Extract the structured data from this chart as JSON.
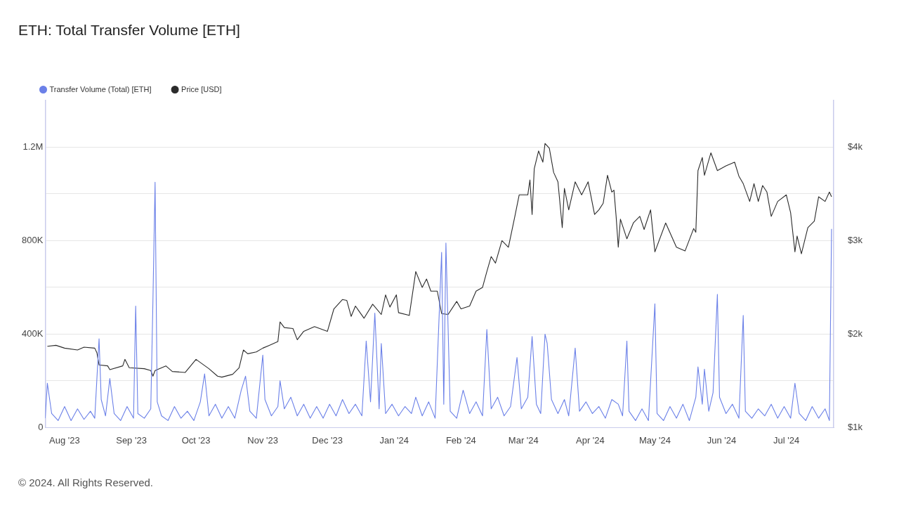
{
  "chart_data": {
    "type": "line",
    "title": "ETH: Total Transfer Volume [ETH]",
    "annotations": [
      "© 2024. All Rights Reserved."
    ],
    "legend": "top left",
    "grid": "y",
    "marker": "none",
    "line_style": "solid",
    "xlim": [
      "2023-07-23",
      "2024-07-23"
    ],
    "xticks": [
      {
        "value": "2023-08-01",
        "label": "Aug '23"
      },
      {
        "value": "2023-09-01",
        "label": "Sep '23"
      },
      {
        "value": "2023-10-01",
        "label": "Oct '23"
      },
      {
        "value": "2023-11-01",
        "label": "Nov '23"
      },
      {
        "value": "2023-12-01",
        "label": "Dec '23"
      },
      {
        "value": "2024-01-01",
        "label": "Jan '24"
      },
      {
        "value": "2024-02-01",
        "label": "Feb '24"
      },
      {
        "value": "2024-03-01",
        "label": "Mar '24"
      },
      {
        "value": "2024-04-01",
        "label": "Apr '24"
      },
      {
        "value": "2024-05-01",
        "label": "May '24"
      },
      {
        "value": "2024-06-01",
        "label": "Jun '24"
      },
      {
        "value": "2024-07-01",
        "label": "Jul '24"
      }
    ],
    "ylim": [
      0,
      1400000
    ],
    "yticks": [
      0,
      {
        "value": 200000,
        "label": null
      },
      {
        "value": 400000,
        "label": "400K"
      },
      {
        "value": 600000,
        "label": null
      },
      {
        "value": 800000,
        "label": "800K"
      },
      {
        "value": 1000000,
        "label": null
      },
      {
        "value": 1200000,
        "label": "1.2M"
      }
    ],
    "y2lim": [
      1000,
      4500
    ],
    "y2ticks": [
      {
        "value": 1000,
        "label": "$1k"
      },
      {
        "value": 2000,
        "label": "$2k"
      },
      {
        "value": 3000,
        "label": "$3k"
      },
      {
        "value": 4000,
        "label": "$4k"
      }
    ],
    "series": [
      {
        "name": "Transfer Volume (Total) [ETH]",
        "color": "#6b80e8",
        "axis": "y",
        "x": [
          "2023-07-23",
          "2023-07-24",
          "2023-07-26",
          "2023-07-29",
          "2023-08-01",
          "2023-08-04",
          "2023-08-07",
          "2023-08-10",
          "2023-08-13",
          "2023-08-15",
          "2023-08-17",
          "2023-08-18",
          "2023-08-20",
          "2023-08-22",
          "2023-08-24",
          "2023-08-27",
          "2023-08-30",
          "2023-09-02",
          "2023-09-03",
          "2023-09-04",
          "2023-09-07",
          "2023-09-10",
          "2023-09-11",
          "2023-09-12",
          "2023-09-13",
          "2023-09-15",
          "2023-09-18",
          "2023-09-21",
          "2023-09-24",
          "2023-09-27",
          "2023-09-30",
          "2023-10-03",
          "2023-10-05",
          "2023-10-07",
          "2023-10-10",
          "2023-10-13",
          "2023-10-16",
          "2023-10-19",
          "2023-10-22",
          "2023-10-24",
          "2023-10-26",
          "2023-10-29",
          "2023-11-01",
          "2023-11-02",
          "2023-11-05",
          "2023-11-08",
          "2023-11-09",
          "2023-11-11",
          "2023-11-14",
          "2023-11-17",
          "2023-11-20",
          "2023-11-23",
          "2023-11-26",
          "2023-11-29",
          "2023-12-02",
          "2023-12-05",
          "2023-12-08",
          "2023-12-11",
          "2023-12-14",
          "2023-12-17",
          "2023-12-19",
          "2023-12-21",
          "2023-12-23",
          "2023-12-25",
          "2023-12-26",
          "2023-12-28",
          "2023-12-31",
          "2024-01-03",
          "2024-01-06",
          "2024-01-09",
          "2024-01-11",
          "2024-01-14",
          "2024-01-17",
          "2024-01-20",
          "2024-01-23",
          "2024-01-24",
          "2024-01-25",
          "2024-01-27",
          "2024-01-30",
          "2024-02-02",
          "2024-02-05",
          "2024-02-08",
          "2024-02-11",
          "2024-02-13",
          "2024-02-15",
          "2024-02-18",
          "2024-02-21",
          "2024-02-24",
          "2024-02-27",
          "2024-02-29",
          "2024-03-03",
          "2024-03-05",
          "2024-03-07",
          "2024-03-09",
          "2024-03-11",
          "2024-03-12",
          "2024-03-14",
          "2024-03-17",
          "2024-03-20",
          "2024-03-22",
          "2024-03-25",
          "2024-03-27",
          "2024-03-30",
          "2024-04-02",
          "2024-04-05",
          "2024-04-08",
          "2024-04-11",
          "2024-04-14",
          "2024-04-16",
          "2024-04-18",
          "2024-04-19",
          "2024-04-22",
          "2024-04-25",
          "2024-04-28",
          "2024-05-01",
          "2024-05-02",
          "2024-05-05",
          "2024-05-08",
          "2024-05-11",
          "2024-05-14",
          "2024-05-17",
          "2024-05-20",
          "2024-05-21",
          "2024-05-23",
          "2024-05-24",
          "2024-05-26",
          "2024-05-28",
          "2024-05-30",
          "2024-05-31",
          "2024-06-03",
          "2024-06-06",
          "2024-06-09",
          "2024-06-11",
          "2024-06-12",
          "2024-06-15",
          "2024-06-18",
          "2024-06-21",
          "2024-06-24",
          "2024-06-27",
          "2024-06-30",
          "2024-07-03",
          "2024-07-05",
          "2024-07-07",
          "2024-07-10",
          "2024-07-13",
          "2024-07-16",
          "2024-07-19",
          "2024-07-21",
          "2024-07-22"
        ],
        "values": [
          40000,
          190000,
          60000,
          30000,
          90000,
          30000,
          80000,
          35000,
          70000,
          40000,
          380000,
          120000,
          50000,
          210000,
          60000,
          30000,
          90000,
          40000,
          520000,
          60000,
          40000,
          80000,
          540000,
          1050000,
          110000,
          50000,
          30000,
          90000,
          40000,
          70000,
          30000,
          110000,
          230000,
          50000,
          100000,
          40000,
          90000,
          40000,
          160000,
          220000,
          70000,
          40000,
          310000,
          120000,
          50000,
          90000,
          200000,
          80000,
          130000,
          50000,
          100000,
          40000,
          90000,
          40000,
          100000,
          50000,
          120000,
          60000,
          100000,
          50000,
          370000,
          110000,
          490000,
          80000,
          360000,
          60000,
          100000,
          50000,
          90000,
          60000,
          130000,
          50000,
          110000,
          40000,
          750000,
          100000,
          790000,
          70000,
          40000,
          160000,
          60000,
          110000,
          50000,
          420000,
          80000,
          130000,
          50000,
          90000,
          300000,
          80000,
          130000,
          390000,
          100000,
          60000,
          400000,
          360000,
          120000,
          60000,
          120000,
          50000,
          340000,
          70000,
          110000,
          60000,
          90000,
          40000,
          120000,
          100000,
          50000,
          370000,
          70000,
          30000,
          80000,
          30000,
          530000,
          60000,
          30000,
          90000,
          40000,
          100000,
          30000,
          130000,
          260000,
          100000,
          250000,
          70000,
          150000,
          570000,
          130000,
          60000,
          100000,
          40000,
          480000,
          70000,
          40000,
          80000,
          50000,
          100000,
          40000,
          90000,
          40000,
          190000,
          60000,
          30000,
          90000,
          40000,
          80000,
          30000,
          850000
        ]
      },
      {
        "name": "Price [USD]",
        "color": "#2b2b2b",
        "axis": "y2",
        "x": [
          "2023-07-24",
          "2023-07-28",
          "2023-08-01",
          "2023-08-07",
          "2023-08-10",
          "2023-08-15",
          "2023-08-16",
          "2023-08-17",
          "2023-08-21",
          "2023-08-22",
          "2023-08-28",
          "2023-08-29",
          "2023-08-31",
          "2023-09-07",
          "2023-09-10",
          "2023-09-11",
          "2023-09-12",
          "2023-09-17",
          "2023-09-20",
          "2023-09-26",
          "2023-10-01",
          "2023-10-07",
          "2023-10-11",
          "2023-10-13",
          "2023-10-18",
          "2023-10-21",
          "2023-10-23",
          "2023-10-25",
          "2023-10-29",
          "2023-11-01",
          "2023-11-04",
          "2023-11-08",
          "2023-11-09",
          "2023-11-11",
          "2023-11-15",
          "2023-11-17",
          "2023-11-20",
          "2023-11-25",
          "2023-12-01",
          "2023-12-04",
          "2023-12-08",
          "2023-12-10",
          "2023-12-12",
          "2023-12-14",
          "2023-12-18",
          "2023-12-22",
          "2023-12-26",
          "2023-12-28",
          "2023-12-30",
          "2024-01-02",
          "2024-01-03",
          "2024-01-08",
          "2024-01-11",
          "2024-01-14",
          "2024-01-16",
          "2024-01-18",
          "2024-01-21",
          "2024-01-23",
          "2024-01-26",
          "2024-01-30",
          "2024-02-01",
          "2024-02-05",
          "2024-02-08",
          "2024-02-11",
          "2024-02-13",
          "2024-02-15",
          "2024-02-17",
          "2024-02-20",
          "2024-02-23",
          "2024-02-26",
          "2024-02-28",
          "2024-03-03",
          "2024-03-04",
          "2024-03-05",
          "2024-03-06",
          "2024-03-08",
          "2024-03-10",
          "2024-03-11",
          "2024-03-13",
          "2024-03-15",
          "2024-03-17",
          "2024-03-19",
          "2024-03-20",
          "2024-03-22",
          "2024-03-25",
          "2024-03-28",
          "2024-03-31",
          "2024-04-03",
          "2024-04-05",
          "2024-04-07",
          "2024-04-09",
          "2024-04-11",
          "2024-04-12",
          "2024-04-13",
          "2024-04-14",
          "2024-04-15",
          "2024-04-18",
          "2024-04-21",
          "2024-04-24",
          "2024-04-26",
          "2024-04-29",
          "2024-05-01",
          "2024-05-06",
          "2024-05-11",
          "2024-05-15",
          "2024-05-19",
          "2024-05-20",
          "2024-05-21",
          "2024-05-23",
          "2024-05-24",
          "2024-05-27",
          "2024-05-30",
          "2024-06-03",
          "2024-06-07",
          "2024-06-09",
          "2024-06-11",
          "2024-06-14",
          "2024-06-16",
          "2024-06-18",
          "2024-06-20",
          "2024-06-22",
          "2024-06-24",
          "2024-06-27",
          "2024-07-01",
          "2024-07-03",
          "2024-07-05",
          "2024-07-06",
          "2024-07-08",
          "2024-07-11",
          "2024-07-14",
          "2024-07-16",
          "2024-07-19",
          "2024-07-21",
          "2024-07-22"
        ],
        "values": [
          1870,
          1880,
          1850,
          1830,
          1860,
          1850,
          1800,
          1670,
          1660,
          1620,
          1660,
          1730,
          1640,
          1630,
          1610,
          1550,
          1610,
          1660,
          1600,
          1590,
          1730,
          1630,
          1550,
          1540,
          1570,
          1640,
          1830,
          1790,
          1810,
          1850,
          1880,
          1920,
          2130,
          2070,
          2060,
          1940,
          2030,
          2080,
          2030,
          2270,
          2370,
          2360,
          2190,
          2300,
          2170,
          2320,
          2210,
          2420,
          2290,
          2420,
          2230,
          2200,
          2670,
          2500,
          2590,
          2460,
          2460,
          2220,
          2210,
          2350,
          2270,
          2300,
          2460,
          2500,
          2670,
          2830,
          2760,
          3000,
          2930,
          3260,
          3490,
          3490,
          3650,
          3280,
          3770,
          3960,
          3840,
          4040,
          3990,
          3730,
          3630,
          3140,
          3560,
          3330,
          3630,
          3490,
          3630,
          3280,
          3330,
          3400,
          3700,
          3520,
          3540,
          3260,
          2930,
          3230,
          3020,
          3190,
          3260,
          3120,
          3330,
          2880,
          3190,
          2930,
          2890,
          3130,
          3090,
          3750,
          3890,
          3700,
          3940,
          3750,
          3800,
          3840,
          3690,
          3610,
          3420,
          3610,
          3420,
          3590,
          3520,
          3260,
          3420,
          3490,
          3300,
          2880,
          3050,
          2860,
          3140,
          3210,
          3470,
          3420,
          3520,
          3470
        ]
      }
    ]
  }
}
